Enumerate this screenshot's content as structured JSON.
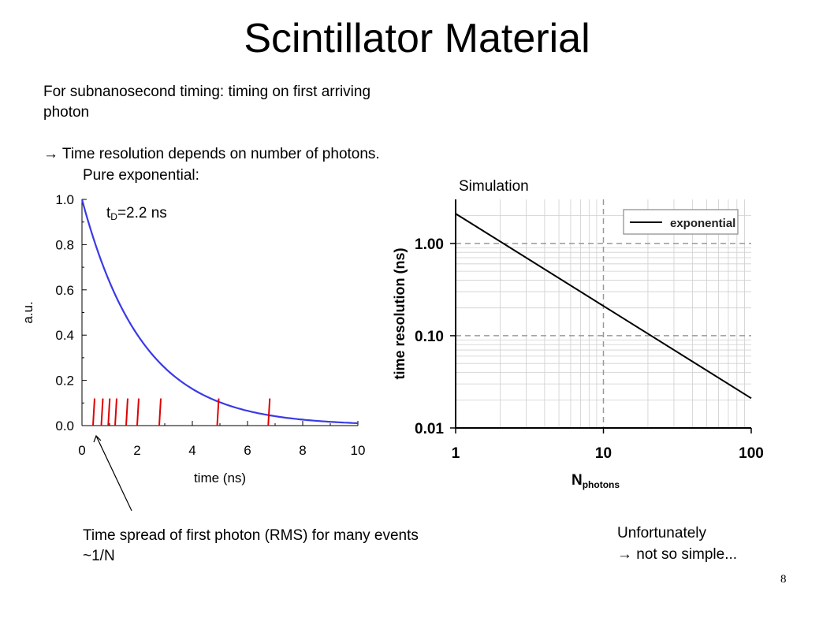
{
  "slide": {
    "title": "Scintillator Material",
    "intro_line1": "For subnanosecond timing: timing on first arriving",
    "intro_line2": "photon",
    "intro_line3": "→ Time resolution depends on number of photons.",
    "pure_label": "Pure exponential:",
    "simulation_label": "Simulation",
    "note_line1": "Time spread of first photon (RMS) for many events",
    "note_line2": "~1/N",
    "unfortunately_line1": "Unfortunately",
    "unfortunately_line2": "→ not so simple...",
    "page_number": "8",
    "tau_symbol": "t",
    "tau_sub": "D",
    "tau_value": "=2.2 ns"
  },
  "colors": {
    "curve": "#3a3ae6",
    "photon_marks": "#e00000",
    "axis": "#000000",
    "grid": "#999999"
  },
  "chart_data": [
    {
      "type": "line",
      "xlabel": "time (ns)",
      "ylabel": "a.u.",
      "xlim": [
        0,
        10
      ],
      "ylim": [
        0,
        1
      ],
      "x_ticks": [
        "0",
        "2",
        "4",
        "6",
        "8",
        "10"
      ],
      "y_ticks": [
        "0.0",
        "0.2",
        "0.4",
        "0.6",
        "0.8",
        "1.0"
      ],
      "series": [
        {
          "function": "exp(-t/2.2)",
          "tau": 2.2,
          "x": [
            0,
            1,
            2,
            3,
            4,
            5,
            6,
            7,
            8,
            9,
            10
          ],
          "y": [
            1.0,
            0.635,
            0.403,
            0.256,
            0.162,
            0.103,
            0.065,
            0.042,
            0.026,
            0.017,
            0.011
          ]
        }
      ],
      "photon_arrival_times": [
        0.4,
        0.7,
        0.95,
        1.2,
        1.6,
        2.0,
        2.8,
        4.9,
        6.75
      ],
      "photon_mark_height": 0.12
    },
    {
      "type": "line",
      "xlabel": "N",
      "xlabel_sub": "photons",
      "ylabel": "time resolution (ns)",
      "x_log": true,
      "y_log": true,
      "xlim": [
        1,
        100
      ],
      "ylim": [
        0.01,
        3
      ],
      "x_ticks": [
        {
          "value": 1,
          "label": "1"
        },
        {
          "value": 10,
          "label": "10"
        },
        {
          "value": 100,
          "label": "100"
        }
      ],
      "y_ticks": [
        {
          "value": 0.01,
          "label": "0.01"
        },
        {
          "value": 0.1,
          "label": "0.10"
        },
        {
          "value": 1,
          "label": "1.00"
        }
      ],
      "grid": true,
      "legend": "top-right",
      "series": [
        {
          "name": "exponential",
          "x": [
            1,
            10,
            100
          ],
          "y": [
            2.1,
            0.21,
            0.021
          ]
        }
      ]
    }
  ]
}
